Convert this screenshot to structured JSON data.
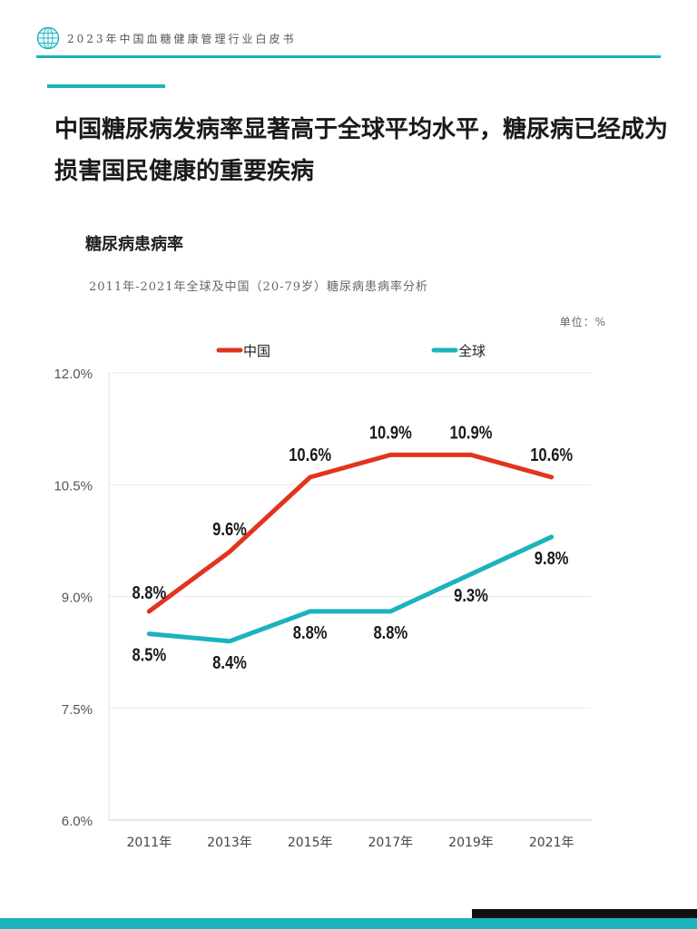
{
  "header": {
    "title": "2023年中国血糖健康管理行业白皮书",
    "logo_icon": "globe-grid-icon",
    "accent_color": "#1bb3bd"
  },
  "headline": "中国糖尿病发病率显著高于全球平均水平，糖尿病已经成为损害国民健康的重要疾病",
  "section_title": "糖尿病患病率",
  "chart_data": {
    "type": "line",
    "subtitle": "2011年-2021年全球及中国（20-79岁）糖尿病患病率分析",
    "unit": "单位：%",
    "categories": [
      "2011年",
      "2013年",
      "2015年",
      "2017年",
      "2019年",
      "2021年"
    ],
    "y_ticks": [
      "12.0%",
      "10.5%",
      "9.0%",
      "7.5%",
      "6.0%"
    ],
    "ylim": [
      6.0,
      12.0
    ],
    "grid": true,
    "legend_position": "top",
    "series": [
      {
        "name": "中国",
        "color": "#e2341d",
        "values": [
          8.8,
          9.6,
          10.6,
          10.9,
          10.9,
          10.6
        ],
        "labels": [
          "8.8%",
          "9.6%",
          "10.6%",
          "10.9%",
          "10.9%",
          "10.6%"
        ]
      },
      {
        "name": "全球",
        "color": "#1bb3bd",
        "values": [
          8.5,
          8.4,
          8.8,
          8.8,
          9.3,
          9.8
        ],
        "labels": [
          "8.5%",
          "8.4%",
          "8.8%",
          "8.8%",
          "9.3%",
          "9.8%"
        ]
      }
    ]
  }
}
